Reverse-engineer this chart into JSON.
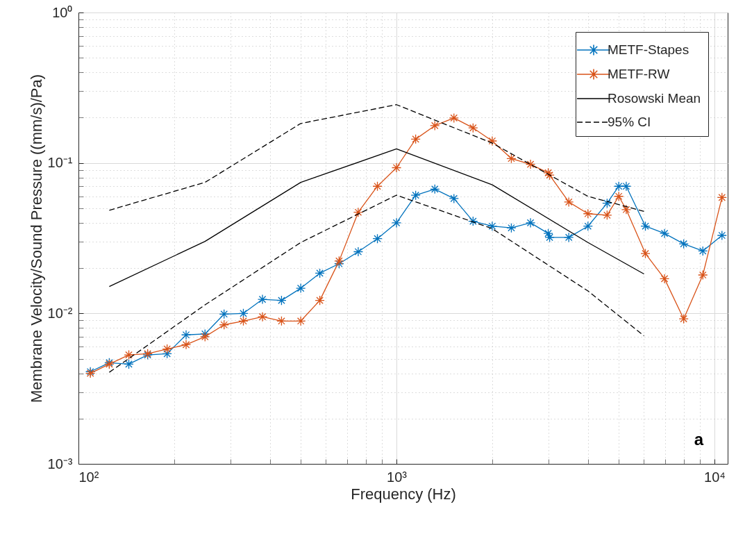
{
  "chart_data": {
    "type": "line",
    "xlabel": "Frequency (Hz)",
    "ylabel": "Membrane Velocity/Sound Pressure ((mm/s)/Pa)",
    "log": "xy",
    "grid": true,
    "legend": "top right",
    "marker": "cross",
    "line_style": "solid",
    "xlim": [
      100,
      11000
    ],
    "ylim": [
      0.001,
      1
    ],
    "xticks": [
      {
        "value": 100,
        "label": "10²"
      },
      {
        "value": 200,
        "label": null
      },
      {
        "value": 300,
        "label": null
      },
      {
        "value": 400,
        "label": null
      },
      {
        "value": 500,
        "label": null
      },
      {
        "value": 600,
        "label": null
      },
      {
        "value": 700,
        "label": null
      },
      {
        "value": 800,
        "label": null
      },
      {
        "value": 900,
        "label": null
      },
      {
        "value": 1000,
        "label": "10³"
      },
      {
        "value": 2000,
        "label": null
      },
      {
        "value": 3000,
        "label": null
      },
      {
        "value": 4000,
        "label": null
      },
      {
        "value": 5000,
        "label": null
      },
      {
        "value": 6000,
        "label": null
      },
      {
        "value": 7000,
        "label": null
      },
      {
        "value": 8000,
        "label": null
      },
      {
        "value": 9000,
        "label": null
      },
      {
        "value": 10000,
        "label": "10⁴"
      }
    ],
    "yticks": [
      {
        "value": 0.001,
        "label": "10⁻³"
      },
      {
        "value": 0.002,
        "label": null
      },
      {
        "value": 0.003,
        "label": null
      },
      {
        "value": 0.004,
        "label": null
      },
      {
        "value": 0.005,
        "label": null
      },
      {
        "value": 0.006,
        "label": null
      },
      {
        "value": 0.007,
        "label": null
      },
      {
        "value": 0.008,
        "label": null
      },
      {
        "value": 0.009,
        "label": null
      },
      {
        "value": 0.01,
        "label": "10⁻²"
      },
      {
        "value": 0.02,
        "label": null
      },
      {
        "value": 0.03,
        "label": null
      },
      {
        "value": 0.04,
        "label": null
      },
      {
        "value": 0.05,
        "label": null
      },
      {
        "value": 0.06,
        "label": null
      },
      {
        "value": 0.07,
        "label": null
      },
      {
        "value": 0.08,
        "label": null
      },
      {
        "value": 0.09,
        "label": null
      },
      {
        "value": 0.1,
        "label": "10⁻¹"
      },
      {
        "value": 0.2,
        "label": null
      },
      {
        "value": 0.3,
        "label": null
      },
      {
        "value": 0.4,
        "label": null
      },
      {
        "value": 0.5,
        "label": null
      },
      {
        "value": 0.6,
        "label": null
      },
      {
        "value": 0.7,
        "label": null
      },
      {
        "value": 0.8,
        "label": null
      },
      {
        "value": 0.9,
        "label": null
      },
      {
        "value": 1,
        "label": "10⁰"
      }
    ],
    "annotations": [
      "a"
    ],
    "series": [
      {
        "name": "METF-Stapes",
        "color": "#0072bd",
        "x": [
          109,
          125,
          144,
          165,
          190,
          218,
          250,
          287,
          330,
          379,
          435,
          500,
          574,
          660,
          758,
          871,
          1000,
          1149,
          1320,
          1516,
          1741,
          2000,
          2297,
          2639,
          3000,
          3031,
          3482,
          4000,
          4595,
          5000,
          5278,
          6063,
          6964,
          8000,
          9190,
          10556
        ],
        "values": [
          0.0041,
          0.0047,
          0.0046,
          0.0053,
          0.0054,
          0.0072,
          0.0073,
          0.0099,
          0.01,
          0.0124,
          0.0122,
          0.0147,
          0.0185,
          0.0214,
          0.0257,
          0.0314,
          0.04,
          0.061,
          0.067,
          0.058,
          0.041,
          0.038,
          0.037,
          0.04,
          0.034,
          0.032,
          0.032,
          0.038,
          0.054,
          0.07,
          0.07,
          0.038,
          0.034,
          0.029,
          0.026,
          0.033
        ]
      },
      {
        "name": "METF-RW",
        "color": "#d95319",
        "x": [
          109,
          125,
          144,
          165,
          190,
          218,
          250,
          287,
          330,
          379,
          435,
          500,
          574,
          660,
          758,
          871,
          1000,
          1149,
          1320,
          1516,
          1741,
          2000,
          2297,
          2639,
          3000,
          3031,
          3482,
          4000,
          4595,
          5000,
          5278,
          6063,
          6964,
          8000,
          9190,
          10556
        ],
        "values": [
          0.004,
          0.0046,
          0.0053,
          0.0054,
          0.0058,
          0.0062,
          0.007,
          0.0084,
          0.0089,
          0.0095,
          0.0089,
          0.0089,
          0.0122,
          0.0223,
          0.047,
          0.07,
          0.093,
          0.144,
          0.177,
          0.199,
          0.171,
          0.14,
          0.107,
          0.098,
          0.086,
          0.083,
          0.055,
          0.046,
          0.045,
          0.06,
          0.049,
          0.025,
          0.017,
          0.0092,
          0.018,
          0.059
        ]
      },
      {
        "name": "Rosowski Mean",
        "color": "#000000",
        "marker": "none",
        "x": [
          125,
          250,
          500,
          1000,
          2000,
          4000,
          6000
        ],
        "values": [
          0.0151,
          0.0301,
          0.0743,
          0.124,
          0.0716,
          0.0296,
          0.0183
        ]
      },
      {
        "name": "95% CI",
        "color": "#000000",
        "marker": "none",
        "line_style": "dashed",
        "x": [
          125,
          250,
          500,
          1000,
          2000,
          4000,
          6000
        ],
        "values": [
          0.0485,
          0.0743,
          0.183,
          0.244,
          0.1355,
          0.06,
          0.0477
        ]
      },
      {
        "color": "#000000",
        "marker": "none",
        "line_style": "dashed",
        "x": [
          125,
          250,
          500,
          1000,
          2000,
          4000,
          6000
        ],
        "values": [
          0.00406,
          0.0114,
          0.0296,
          0.0611,
          0.0366,
          0.0141,
          0.0071
        ]
      }
    ]
  }
}
